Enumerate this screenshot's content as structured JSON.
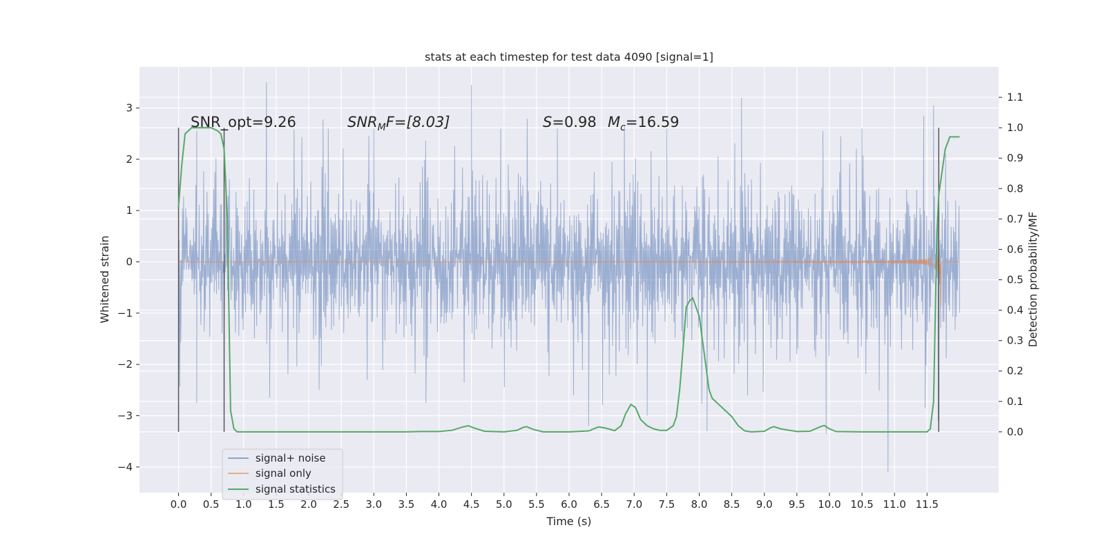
{
  "chart_data": {
    "type": "line",
    "title": "stats at each timestep for test data 4090 [signal=1]",
    "xlabel": "Time (s)",
    "ylabel_left": "Whitened strain",
    "ylabel_right": "Detection probability/MF",
    "xlim": [
      -0.6,
      12.6
    ],
    "ylim_left": [
      -4.5,
      3.8
    ],
    "ylim_right": [
      -0.2,
      1.2
    ],
    "x_ticks": [
      0.0,
      0.5,
      1.0,
      1.5,
      2.0,
      2.5,
      3.0,
      3.5,
      4.0,
      4.5,
      5.0,
      5.5,
      6.0,
      6.5,
      7.0,
      7.5,
      8.0,
      8.5,
      9.0,
      9.5,
      10.0,
      10.5,
      11.0,
      11.5
    ],
    "x_tick_labels": [
      "0.0",
      "0.5",
      "1.0",
      "1.5",
      "2.0",
      "2.5",
      "3.0",
      "3.5",
      "4.0",
      "4.5",
      "5.0",
      "5.5",
      "6.0",
      "6.5",
      "7.0",
      "7.5",
      "8.0",
      "8.5",
      "9.0",
      "9.5",
      "10.0",
      "10.5",
      "11.0",
      "11.5"
    ],
    "y_left_ticks": [
      3,
      2,
      1,
      0,
      -1,
      -2,
      -3,
      -4
    ],
    "y_left_tick_labels": [
      "3",
      "2",
      "1",
      "0",
      "−1",
      "−2",
      "−3",
      "−4"
    ],
    "y_right_ticks": [
      1.1,
      1.0,
      0.9,
      0.8,
      0.7,
      0.6,
      0.5,
      0.4,
      0.3,
      0.2,
      0.1,
      0.0
    ],
    "y_right_tick_labels": [
      "1.1",
      "1.0",
      "0.9",
      "0.8",
      "0.7",
      "0.6",
      "0.5",
      "0.4",
      "0.3",
      "0.2",
      "0.1",
      "0.0"
    ],
    "grid": true,
    "legend_position": "bottom-left",
    "series": [
      {
        "name": "signal+ noise",
        "axis": "left",
        "color": "#4c72b0",
        "kind": "noise_trace",
        "x_range": [
          0.0,
          12.0
        ],
        "typical_range": [
          -1.6,
          1.6
        ],
        "extremes": {
          "max": 3.5,
          "min": -4.1
        },
        "spikes": [
          {
            "x": 1.35,
            "y": 3.5
          },
          {
            "x": 4.5,
            "y": 3.45
          },
          {
            "x": 8.65,
            "y": 3.2
          },
          {
            "x": 11.6,
            "y": 3.05
          },
          {
            "x": 11.45,
            "y": 2.85
          },
          {
            "x": 0.28,
            "y": 2.55
          },
          {
            "x": 2.3,
            "y": 2.6
          },
          {
            "x": 3.0,
            "y": 2.6
          },
          {
            "x": 4.95,
            "y": 2.6
          },
          {
            "x": 5.82,
            "y": 2.6
          },
          {
            "x": 6.85,
            "y": 2.65
          },
          {
            "x": 7.5,
            "y": 2.6
          },
          {
            "x": 9.9,
            "y": 2.55
          },
          {
            "x": 10.5,
            "y": 2.6
          },
          {
            "x": 10.9,
            "y": -4.1
          },
          {
            "x": 6.3,
            "y": -3.2
          },
          {
            "x": 8.12,
            "y": -3.3
          },
          {
            "x": 9.95,
            "y": -3.35
          },
          {
            "x": 0.28,
            "y": -2.75
          },
          {
            "x": 1.4,
            "y": -2.65
          },
          {
            "x": 3.8,
            "y": -2.75
          },
          {
            "x": 7.2,
            "y": -3.0
          },
          {
            "x": 11.47,
            "y": -2.85
          },
          {
            "x": 11.67,
            "y": -3.1
          }
        ]
      },
      {
        "name": "signal only",
        "axis": "left",
        "color": "#dd8452",
        "kind": "chirp",
        "x_range": [
          0.0,
          12.0
        ],
        "merger_time": 11.72,
        "peak_amplitude": 1.3
      },
      {
        "name": "signal statistics",
        "axis": "right",
        "color": "#55a868",
        "kind": "line",
        "x": [
          0.0,
          0.05,
          0.1,
          0.15,
          0.2,
          0.3,
          0.4,
          0.5,
          0.6,
          0.65,
          0.7,
          0.75,
          0.8,
          0.85,
          0.9,
          1.0,
          1.5,
          2.0,
          2.5,
          3.0,
          3.5,
          3.7,
          4.0,
          4.2,
          4.35,
          4.45,
          4.55,
          4.7,
          5.0,
          5.2,
          5.3,
          5.35,
          5.45,
          5.6,
          6.0,
          6.3,
          6.45,
          6.55,
          6.7,
          6.8,
          6.87,
          6.95,
          7.02,
          7.1,
          7.2,
          7.3,
          7.4,
          7.5,
          7.6,
          7.65,
          7.7,
          7.75,
          7.8,
          7.85,
          7.9,
          7.95,
          8.0,
          8.05,
          8.1,
          8.15,
          8.2,
          8.3,
          8.4,
          8.5,
          8.6,
          8.7,
          8.8,
          9.0,
          9.1,
          9.15,
          9.25,
          9.5,
          9.7,
          9.85,
          9.92,
          10.0,
          10.1,
          10.5,
          11.0,
          11.5,
          11.55,
          11.6,
          11.65,
          11.68,
          11.72,
          11.78,
          11.85,
          11.92,
          12.0
        ],
        "y": [
          0.74,
          0.88,
          0.98,
          0.99,
          1.0,
          1.0,
          1.0,
          1.0,
          0.99,
          0.98,
          0.93,
          0.7,
          0.07,
          0.01,
          0.0,
          0.0,
          0.0,
          0.0,
          0.0,
          0.0,
          0.0,
          0.001,
          0.001,
          0.005,
          0.015,
          0.02,
          0.012,
          0.002,
          0.0,
          0.005,
          0.015,
          0.017,
          0.008,
          0.0,
          0.0,
          0.003,
          0.016,
          0.013,
          0.004,
          0.02,
          0.06,
          0.09,
          0.08,
          0.04,
          0.02,
          0.01,
          0.005,
          0.005,
          0.02,
          0.05,
          0.14,
          0.27,
          0.41,
          0.43,
          0.44,
          0.41,
          0.38,
          0.3,
          0.22,
          0.14,
          0.11,
          0.09,
          0.07,
          0.05,
          0.02,
          0.003,
          0.0,
          0.002,
          0.014,
          0.017,
          0.01,
          0.001,
          0.002,
          0.016,
          0.021,
          0.01,
          0.001,
          0.0,
          0.0,
          0.0,
          0.01,
          0.1,
          0.65,
          0.78,
          0.84,
          0.93,
          0.97,
          0.97,
          0.97
        ]
      }
    ],
    "vertical_lines": [
      {
        "x": 0.0,
        "y_right": [
          -0.0,
          1.0
        ]
      },
      {
        "x": 0.7,
        "y_right": [
          -0.0,
          1.0
        ]
      },
      {
        "x": 11.68,
        "y_right": [
          -0.0,
          1.0
        ]
      }
    ],
    "annotations": {
      "snr_opt": "SNR_opt=9.26",
      "snr_mf_label": "SNR",
      "snr_mf_sub": "M",
      "snr_mf_value": "F=[8.03]",
      "s_label": "S",
      "s_value": "=0.98",
      "mc_label": "M",
      "mc_sub": "c",
      "mc_value": "=16.59"
    }
  }
}
